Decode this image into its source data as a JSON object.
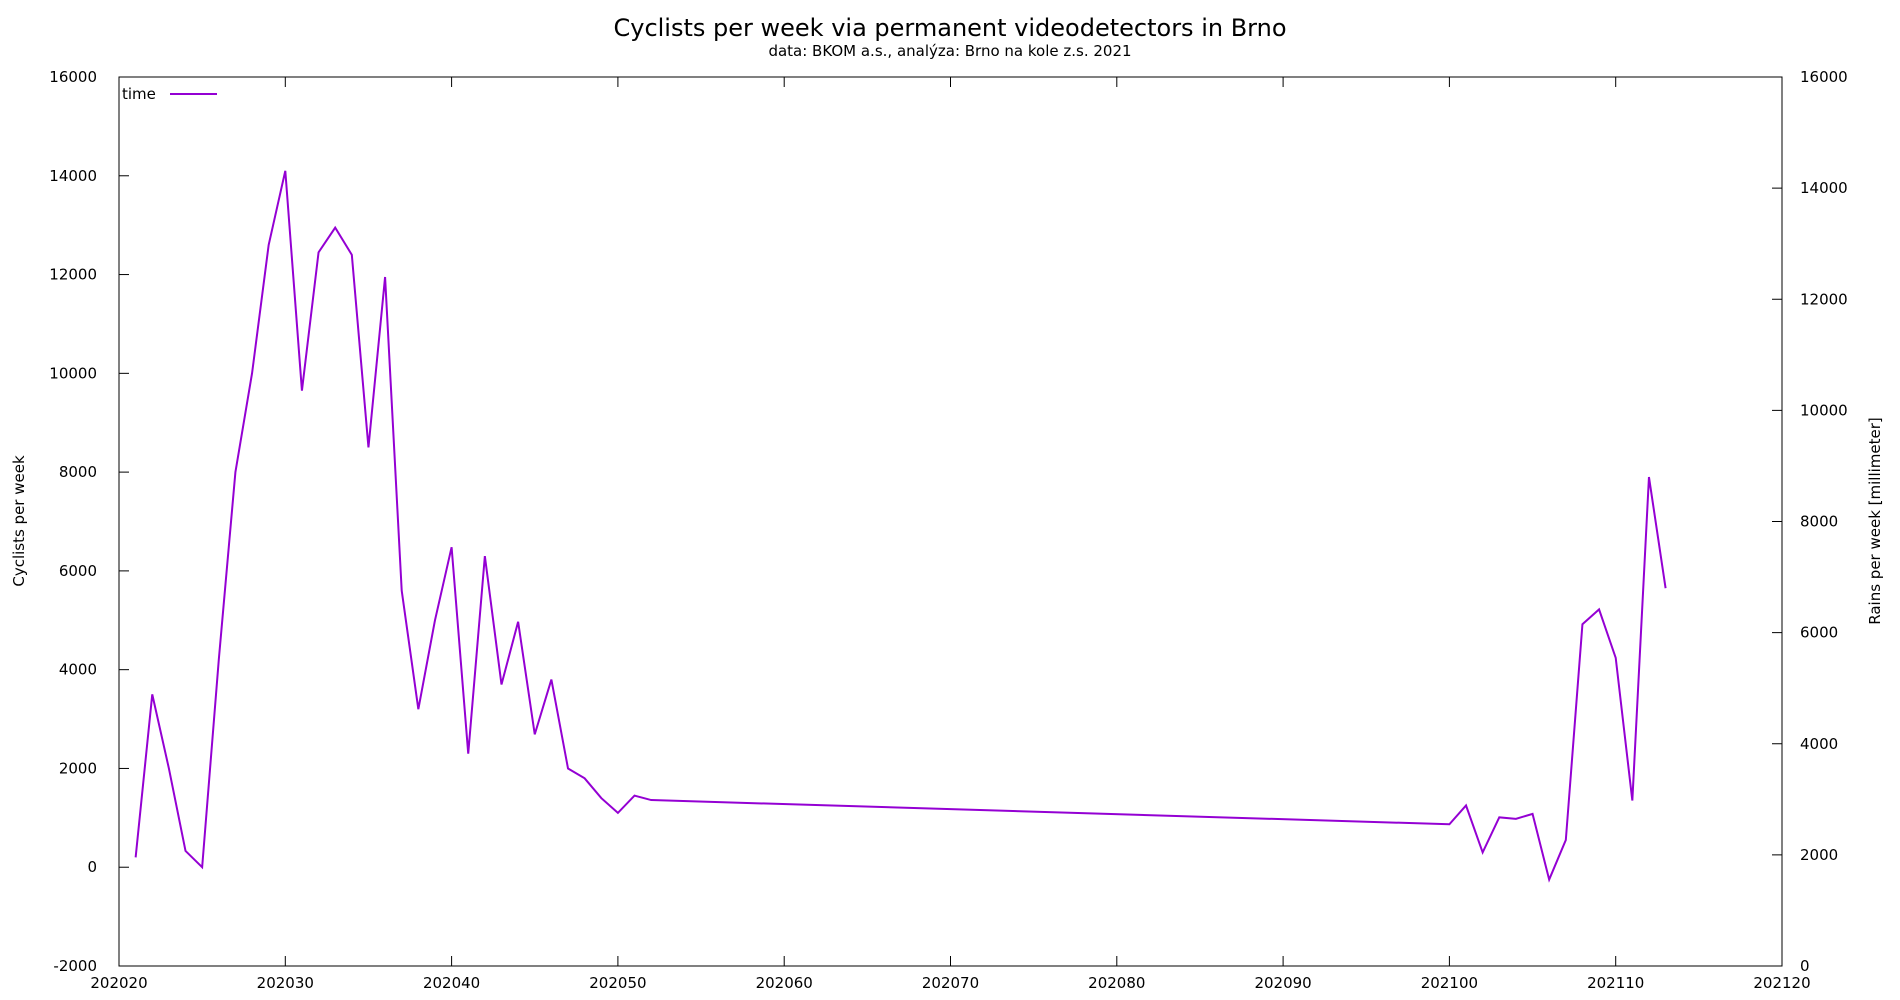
{
  "chart_data": {
    "type": "line",
    "title": "Cyclists per week via permanent videodetectors in Brno",
    "subtitle": "data: BKOM a.s., analýza: Brno na kole z.s. 2021",
    "xlabel": "",
    "ylabel": "Cyclists per week",
    "y2label": "Rains per week [millimeter]",
    "xlim": [
      202020,
      202120
    ],
    "ylim": [
      -2000,
      16000
    ],
    "y2lim": [
      0,
      16000
    ],
    "x_ticks": [
      "202020",
      "202030",
      "202040",
      "202050",
      "202060",
      "202070",
      "202080",
      "202090",
      "202100",
      "202110",
      "202120"
    ],
    "y_ticks": [
      "-2000",
      "0",
      "2000",
      "4000",
      "6000",
      "8000",
      "10000",
      "12000",
      "14000",
      "16000"
    ],
    "y2_ticks": [
      "0",
      "2000",
      "4000",
      "6000",
      "8000",
      "10000",
      "12000",
      "14000",
      "16000"
    ],
    "grid": false,
    "legend_position": "top-left",
    "series": [
      {
        "name": "time",
        "color": "#9400d3",
        "x": [
          202021,
          202022,
          202023,
          202024,
          202025,
          202026,
          202027,
          202028,
          202029,
          202030,
          202031,
          202032,
          202033,
          202034,
          202035,
          202036,
          202037,
          202038,
          202039,
          202040,
          202041,
          202042,
          202043,
          202044,
          202045,
          202046,
          202047,
          202048,
          202049,
          202050,
          202051,
          202052,
          202100,
          202101,
          202102,
          202103,
          202104,
          202105,
          202106,
          202107,
          202108,
          202109,
          202110,
          202111,
          202112,
          202113
        ],
        "y": [
          200,
          3500,
          2000,
          330,
          0,
          4200,
          8000,
          10000,
          12600,
          14100,
          9650,
          12450,
          12950,
          12400,
          8500,
          11950,
          5600,
          3200,
          5000,
          6480,
          2300,
          6300,
          3700,
          4970,
          2690,
          3800,
          2000,
          1800,
          1400,
          1100,
          1450,
          1360,
          870,
          1250,
          300,
          1010,
          980,
          1080,
          -250,
          550,
          4920,
          5220,
          4240,
          1350,
          7900,
          5650
        ]
      }
    ]
  }
}
